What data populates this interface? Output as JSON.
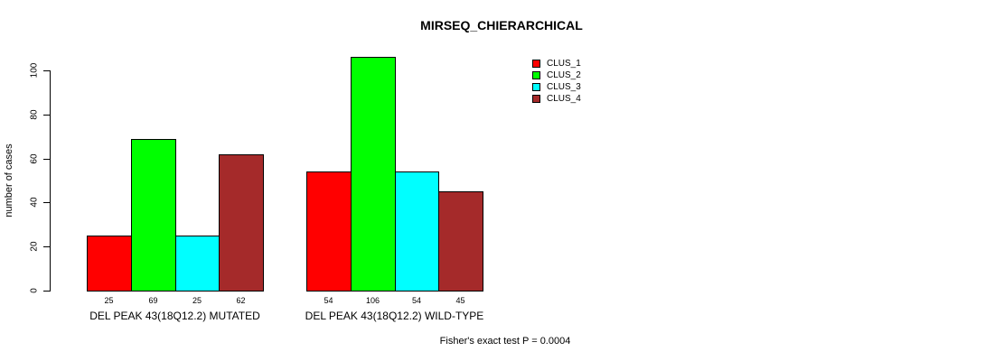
{
  "title": "MIRSEQ_CHIERARCHICAL",
  "chart_data": {
    "type": "bar",
    "title": "MIRSEQ_CHIERARCHICAL",
    "xlabel": "",
    "ylabel": "number of cases",
    "categories": [
      "DEL PEAK 43(18Q12.2) MUTATED",
      "DEL PEAK 43(18Q12.2) WILD-TYPE"
    ],
    "series": [
      {
        "name": "CLUS_1",
        "color": "#FF0000",
        "values": [
          25,
          54
        ]
      },
      {
        "name": "CLUS_2",
        "color": "#00FF00",
        "values": [
          69,
          106
        ]
      },
      {
        "name": "CLUS_3",
        "color": "#00FFFF",
        "values": [
          25,
          54
        ]
      },
      {
        "name": "CLUS_4",
        "color": "#A52A2A",
        "values": [
          62,
          45
        ]
      }
    ],
    "yticks": [
      0,
      20,
      40,
      60,
      80,
      100
    ],
    "ylim": [
      0,
      106
    ],
    "grid": false,
    "bar_value_labels": true,
    "legend_position": "top-right",
    "legend_entries": [
      "CLUS_1",
      "CLUS_2",
      "CLUS_3",
      "CLUS_4"
    ],
    "annotation": "Fisher's exact test P = 0.0004"
  }
}
